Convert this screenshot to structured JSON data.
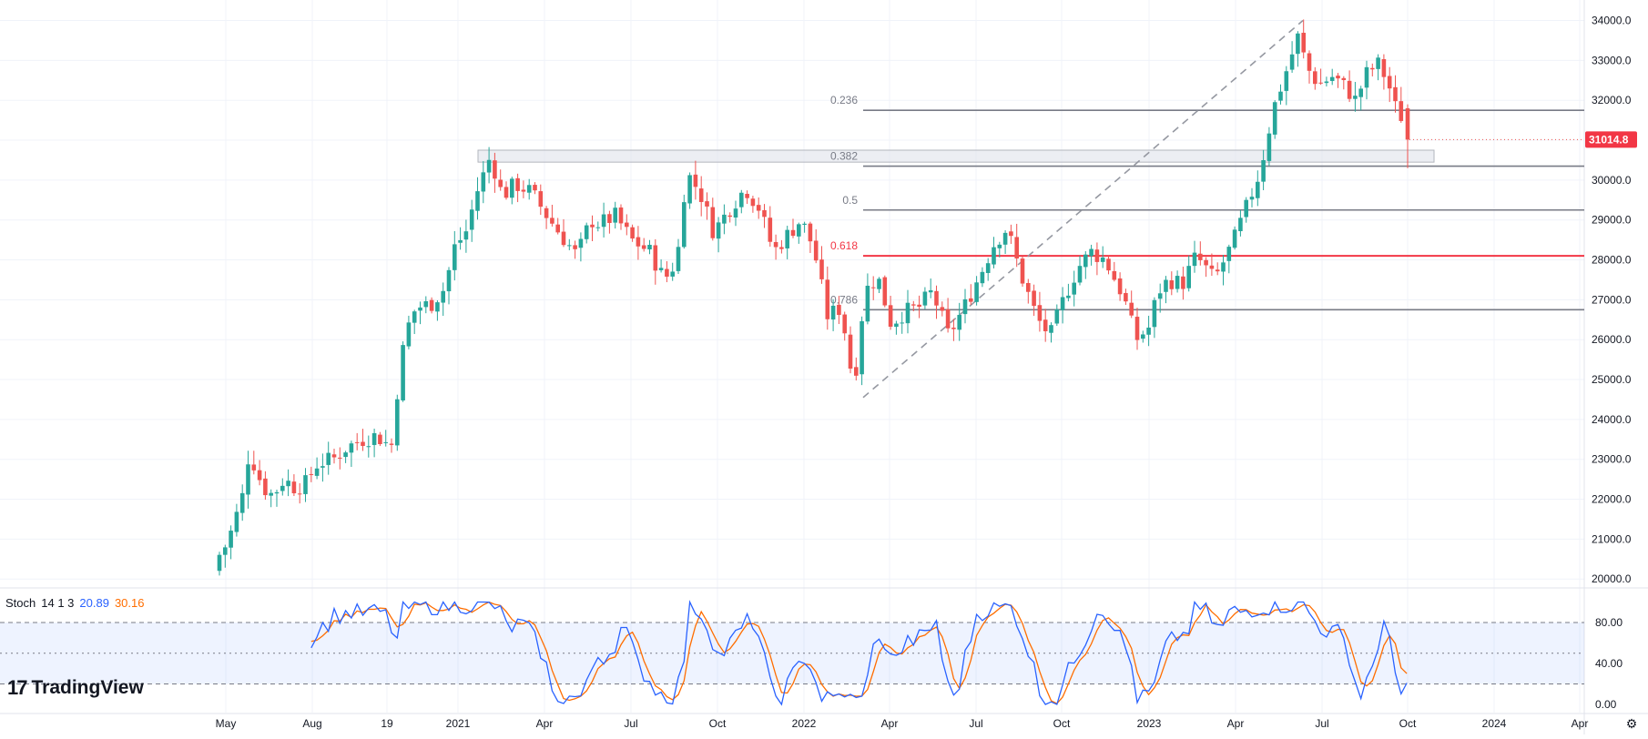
{
  "chart_data": [
    {
      "type": "candlestick",
      "title": "",
      "price_axis": {
        "ticks": [
          "34000.0",
          "33000.0",
          "32000.0",
          "31000.0",
          "30000.0",
          "29000.0",
          "28000.0",
          "27000.0",
          "26000.0",
          "25000.0",
          "24000.0",
          "23000.0",
          "22000.0",
          "21000.0",
          "20000.0"
        ],
        "ylim": [
          19800,
          34400
        ],
        "last_price_label": "31014.8",
        "last_price": 31014.8
      },
      "time_axis": {
        "labels": [
          "May",
          "Aug",
          "19",
          "2021",
          "Apr",
          "Jul",
          "Oct",
          "2022",
          "Apr",
          "Jul",
          "Oct",
          "2023",
          "Apr",
          "Jul",
          "Oct",
          "2024",
          "Apr"
        ]
      },
      "fibonacci": [
        {
          "level": "0.236",
          "price": 31750,
          "color": "#787b86"
        },
        {
          "level": "0.382",
          "price": 30350,
          "color": "#787b86"
        },
        {
          "level": "0.5",
          "price": 29250,
          "color": "#787b86"
        },
        {
          "level": "0.618",
          "price": 28100,
          "color": "#f23645"
        },
        {
          "level": "0.786",
          "price": 26750,
          "color": "#787b86"
        }
      ],
      "resistance_zone": {
        "from": 30450,
        "to": 30750
      },
      "trendline": {
        "from_price": 24550,
        "to_price": 34000
      },
      "colors": {
        "up": "#26a69a",
        "down": "#ef5350",
        "fib_key": "#f23645",
        "grid": "#f0f3fa"
      }
    },
    {
      "type": "line",
      "indicator": "Stoch",
      "params": "14 1 3",
      "k_value": "20.89",
      "d_value": "30.16",
      "ticks": [
        "80.00",
        "40.00",
        "0.00"
      ],
      "ylim": [
        -8,
        112
      ],
      "bands": [
        80,
        50,
        20
      ],
      "series": [
        {
          "name": "%K",
          "color": "#2962ff"
        },
        {
          "name": "%D",
          "color": "#ff6d00"
        }
      ]
    }
  ],
  "branding": {
    "name": "TradingView"
  }
}
